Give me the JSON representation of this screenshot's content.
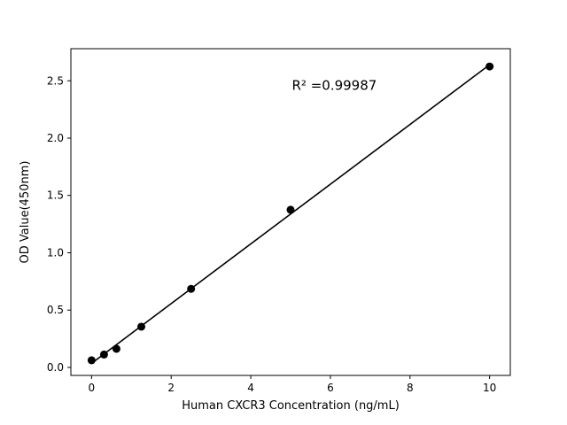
{
  "chart_data": {
    "type": "scatter",
    "series": [
      {
        "name": "standard-curve-points",
        "x": [
          0,
          0.3125,
          0.625,
          1.25,
          2.5,
          5,
          10
        ],
        "y": [
          0.062,
          0.112,
          0.162,
          0.355,
          0.685,
          1.375,
          2.625
        ]
      }
    ],
    "fit_line": {
      "x_start": 0,
      "x_end": 10
    },
    "annotation": {
      "text": "R² =0.99987",
      "x": 6.1,
      "y": 2.42
    },
    "title": "",
    "xlabel": "Human CXCR3 Concentration (ng/mL)",
    "ylabel": "OD Value(450nm)",
    "xticks": [
      0,
      2,
      4,
      6,
      8,
      10
    ],
    "xtick_labels": [
      "0",
      "2",
      "4",
      "6",
      "8",
      "10"
    ],
    "yticks": [
      0,
      0.5,
      1,
      1.5,
      2,
      2.5
    ],
    "ytick_labels": [
      "0.0",
      "0.5",
      "1.0",
      "1.5",
      "2.0",
      "2.5"
    ],
    "xlim": [
      -0.52,
      10.52
    ],
    "ylim": [
      -0.07,
      2.78
    ],
    "grid": false,
    "legend": "none",
    "colors": {
      "points": "#000000",
      "line": "#000000",
      "axis": "#000000",
      "text": "#000000",
      "background": "#ffffff"
    }
  }
}
